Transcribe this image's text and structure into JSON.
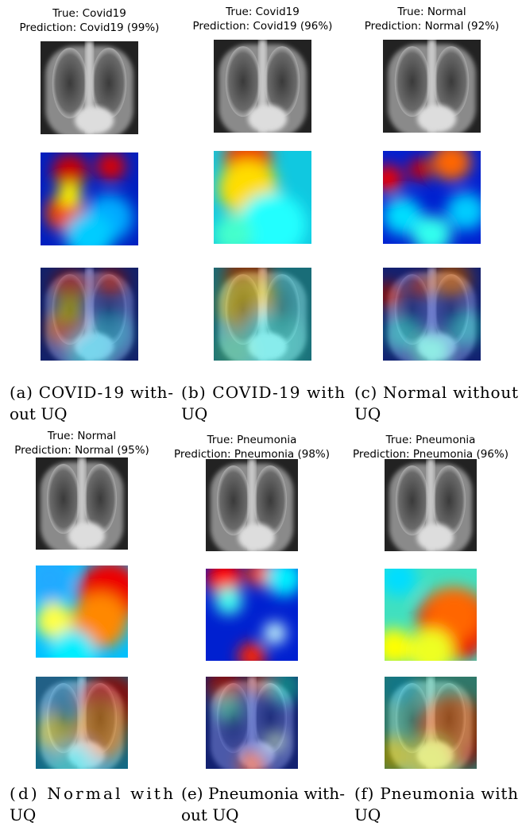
{
  "panels": [
    {
      "true": "True: Covid19",
      "prediction": "Prediction: Covid19 (99%)",
      "caption_lines": [
        "(a) COVID-19 with-",
        "out UQ"
      ]
    },
    {
      "true": "True: Covid19",
      "prediction": "Prediction: Covid19 (96%)",
      "caption_lines": [
        "(b) COVID-19 with",
        "UQ"
      ]
    },
    {
      "true": "True: Normal",
      "prediction": "Prediction: Normal (92%)",
      "caption_lines": [
        "(c) Normal without",
        "UQ"
      ]
    },
    {
      "true": "True: Normal",
      "prediction": "Prediction: Normal (95%)",
      "caption_lines": [
        "(d) Normal with",
        "UQ"
      ]
    },
    {
      "true": "True: Pneumonia",
      "prediction": "Prediction: Pneumonia (98%)",
      "caption_lines": [
        "(e) Pneumonia with-",
        "out UQ"
      ]
    },
    {
      "true": "True: Pneumonia",
      "prediction": "Prediction: Pneumonia (96%)",
      "caption_lines": [
        "(f) Pneumonia with",
        "UQ"
      ]
    }
  ]
}
